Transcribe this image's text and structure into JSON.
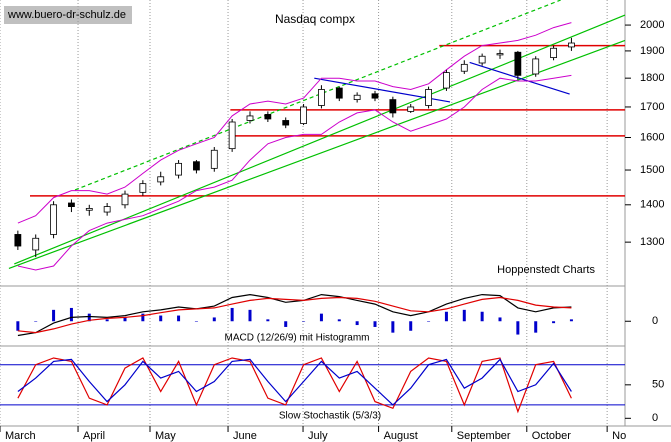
{
  "chart_data": [
    {
      "type": "candlestick",
      "title": "Nasdaq compx",
      "annotations": [
        "www.buero-dr-schulz.de",
        "Hoppenstedt Charts"
      ],
      "log_scale": true,
      "xlim": [
        -1,
        34
      ],
      "ylim": [
        1194,
        2102
      ],
      "yticks": [
        1300,
        1400,
        1500,
        1600,
        1700,
        1800,
        1900,
        2000
      ],
      "x": [
        0,
        1,
        2,
        3,
        4,
        5,
        6,
        7,
        8,
        9,
        10,
        11,
        12,
        13,
        14,
        15,
        16,
        17,
        18,
        19,
        20,
        21,
        22,
        23,
        24,
        25,
        26,
        27,
        28,
        29,
        30,
        31
      ],
      "open": [
        1320,
        1280,
        1320,
        1405,
        1385,
        1380,
        1400,
        1435,
        1465,
        1485,
        1525,
        1505,
        1565,
        1655,
        1675,
        1655,
        1645,
        1705,
        1765,
        1725,
        1745,
        1725,
        1685,
        1705,
        1765,
        1825,
        1855,
        1885,
        1895,
        1815,
        1875,
        1915
      ],
      "high": [
        1330,
        1320,
        1410,
        1415,
        1400,
        1405,
        1440,
        1470,
        1495,
        1530,
        1530,
        1570,
        1660,
        1685,
        1685,
        1665,
        1710,
        1775,
        1770,
        1750,
        1755,
        1735,
        1710,
        1770,
        1830,
        1865,
        1890,
        1905,
        1900,
        1880,
        1920,
        1950
      ],
      "low": [
        1280,
        1262,
        1310,
        1380,
        1370,
        1370,
        1390,
        1425,
        1455,
        1475,
        1490,
        1495,
        1555,
        1645,
        1650,
        1630,
        1640,
        1695,
        1720,
        1715,
        1720,
        1665,
        1680,
        1695,
        1755,
        1815,
        1845,
        1870,
        1795,
        1805,
        1865,
        1900
      ],
      "close": [
        1290,
        1310,
        1400,
        1395,
        1390,
        1395,
        1430,
        1460,
        1480,
        1520,
        1500,
        1560,
        1650,
        1670,
        1660,
        1640,
        1700,
        1760,
        1730,
        1740,
        1730,
        1680,
        1700,
        1760,
        1820,
        1850,
        1880,
        1890,
        1810,
        1870,
        1910,
        1930
      ],
      "series": [
        {
          "color": "#cc00cc",
          "values": [
            1350,
            1370,
            1420,
            1440,
            1440,
            1430,
            1450,
            1490,
            1530,
            1560,
            1580,
            1600,
            1670,
            1710,
            1720,
            1710,
            1730,
            1800,
            1800,
            1790,
            1790,
            1770,
            1760,
            1780,
            1830,
            1880,
            1920,
            1930,
            1940,
            1960,
            1990,
            2010
          ]
        },
        {
          "color": "#cc00cc",
          "values": [
            1240,
            1230,
            1240,
            1290,
            1330,
            1350,
            1360,
            1370,
            1390,
            1410,
            1440,
            1450,
            1470,
            1530,
            1580,
            1600,
            1610,
            1610,
            1650,
            1680,
            1690,
            1650,
            1620,
            1640,
            1660,
            1700,
            1760,
            1800,
            1790,
            1790,
            1800,
            1810
          ]
        }
      ],
      "hlines": [
        {
          "value": 1425,
          "from": 0.68,
          "color": "#e00000"
        },
        {
          "value": 1605,
          "from": 11.9,
          "color": "#e00000"
        },
        {
          "value": 1690,
          "from": 11.9,
          "color": "#e00000"
        },
        {
          "value": 1920,
          "from": 23.6,
          "color": "#e00000"
        }
      ],
      "trendlines": [
        {
          "x": [
            -0.5,
            34
          ],
          "values": [
            1234,
            1940
          ],
          "color": "#00c000",
          "dashed": false
        },
        {
          "x": [
            -0.2,
            34
          ],
          "values": [
            1245,
            2040
          ],
          "color": "#00c000",
          "dashed": false
        },
        {
          "x": [
            3.2,
            30.4
          ],
          "values": [
            1442,
            2102
          ],
          "color": "#00c000",
          "dashed": true
        },
        {
          "x": [
            16.6,
            24.2
          ],
          "values": [
            1800,
            1717
          ],
          "color": "#0000cc",
          "dashed": false
        },
        {
          "x": [
            25.3,
            30.9
          ],
          "values": [
            1857,
            1744
          ],
          "color": "#0000cc",
          "dashed": false
        }
      ]
    },
    {
      "type": "macd",
      "title": "MACD (12/26/9) mit Histogramm",
      "xlim": [
        -1,
        34
      ],
      "ylim": [
        -25,
        35
      ],
      "yticks": [
        0
      ],
      "x": [
        0,
        1,
        2,
        3,
        4,
        5,
        6,
        7,
        8,
        9,
        10,
        11,
        12,
        13,
        14,
        15,
        16,
        17,
        18,
        19,
        20,
        21,
        22,
        23,
        24,
        25,
        26,
        27,
        28,
        29,
        30,
        31
      ],
      "series": [
        {
          "type": "bar",
          "color": "#0000cc",
          "values": [
            -10,
            0,
            12,
            14,
            8,
            2,
            4,
            8,
            6,
            6,
            0,
            4,
            14,
            12,
            2,
            -6,
            0,
            8,
            2,
            -4,
            -6,
            -12,
            -10,
            0,
            10,
            12,
            10,
            4,
            -14,
            -12,
            -2,
            2
          ]
        },
        {
          "type": "line",
          "color": "#000000",
          "values": [
            -15,
            -12,
            -2,
            4,
            5,
            4,
            6,
            10,
            12,
            15,
            13,
            16,
            25,
            28,
            25,
            20,
            22,
            28,
            26,
            22,
            18,
            10,
            6,
            10,
            18,
            24,
            28,
            27,
            14,
            10,
            14,
            15
          ]
        },
        {
          "type": "line",
          "color": "#e00000",
          "values": [
            -10,
            -12,
            -8,
            -3,
            1,
            3,
            4,
            6,
            9,
            12,
            13,
            14,
            18,
            22,
            24,
            23,
            22,
            24,
            25,
            24,
            21,
            16,
            11,
            10,
            13,
            18,
            23,
            25,
            22,
            17,
            15,
            14
          ]
        }
      ]
    },
    {
      "type": "stochastic",
      "title": "Slow Stochastik (5/3/3)",
      "xlim": [
        -1,
        34
      ],
      "ylim": [
        -10,
        105
      ],
      "yticks": [
        0,
        50
      ],
      "hlines": [
        {
          "value": 20,
          "color": "#0000cc"
        },
        {
          "value": 80,
          "color": "#0000cc"
        }
      ],
      "xticks": [
        {
          "value": -1,
          "label": "March"
        },
        {
          "value": 3.37,
          "label": "April"
        },
        {
          "value": 7.4,
          "label": "May"
        },
        {
          "value": 11.77,
          "label": "June"
        },
        {
          "value": 15.97,
          "label": "July"
        },
        {
          "value": 20.2,
          "label": "August"
        },
        {
          "value": 24.3,
          "label": "September"
        },
        {
          "value": 28.5,
          "label": "October"
        },
        {
          "value": 33,
          "label": "No"
        }
      ],
      "x": [
        0,
        1,
        2,
        3,
        4,
        5,
        6,
        7,
        8,
        9,
        10,
        11,
        12,
        13,
        14,
        15,
        16,
        17,
        18,
        19,
        20,
        21,
        22,
        23,
        24,
        25,
        26,
        27,
        28,
        29,
        30,
        31
      ],
      "series": [
        {
          "type": "line",
          "color": "#e00000",
          "values": [
            30,
            80,
            90,
            85,
            30,
            20,
            75,
            90,
            40,
            85,
            20,
            80,
            90,
            85,
            30,
            20,
            80,
            90,
            40,
            85,
            25,
            15,
            70,
            90,
            85,
            20,
            85,
            90,
            10,
            80,
            85,
            30
          ]
        },
        {
          "type": "line",
          "color": "#0000cc",
          "values": [
            40,
            60,
            85,
            88,
            55,
            25,
            50,
            85,
            60,
            70,
            40,
            55,
            85,
            88,
            55,
            25,
            55,
            85,
            60,
            70,
            45,
            20,
            45,
            80,
            88,
            45,
            60,
            88,
            40,
            50,
            82,
            40
          ]
        }
      ]
    }
  ]
}
